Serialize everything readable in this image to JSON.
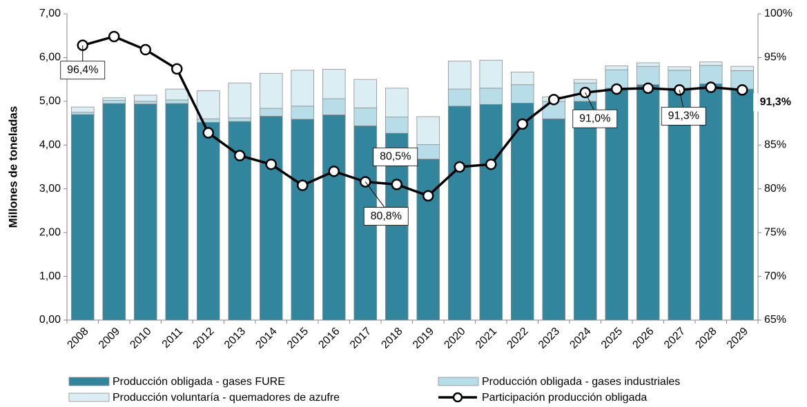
{
  "chart_data": {
    "type": "stacked_bar_line",
    "y_axis_label": "Millones de toneladas",
    "categories": [
      "2008",
      "2009",
      "2010",
      "2011",
      "2012",
      "2013",
      "2014",
      "2015",
      "2016",
      "2017",
      "2018",
      "2019",
      "2020",
      "2021",
      "2022",
      "2023",
      "2024",
      "2025",
      "2026",
      "2027",
      "2028",
      "2029"
    ],
    "series": [
      {
        "name": "Producción obligada - gases FURE",
        "color": "#31859c",
        "values": [
          4.7,
          4.95,
          4.94,
          4.95,
          4.52,
          4.54,
          4.66,
          4.59,
          4.69,
          4.44,
          4.27,
          3.68,
          4.89,
          4.93,
          4.96,
          4.6,
          5.0,
          5.3,
          5.38,
          5.3,
          5.4,
          5.28
        ]
      },
      {
        "name": "Producción obligada - gases industriales",
        "color": "#b7dee8",
        "values": [
          0.05,
          0.07,
          0.06,
          0.08,
          0.08,
          0.08,
          0.18,
          0.3,
          0.37,
          0.41,
          0.37,
          0.33,
          0.39,
          0.37,
          0.42,
          0.4,
          0.42,
          0.42,
          0.42,
          0.41,
          0.42,
          0.42
        ]
      },
      {
        "name": "Producción voluntaría - quemadores de azufre",
        "color": "#dbeef4",
        "values": [
          0.12,
          0.06,
          0.14,
          0.25,
          0.64,
          0.8,
          0.8,
          0.82,
          0.67,
          0.65,
          0.66,
          0.64,
          0.64,
          0.64,
          0.29,
          0.1,
          0.08,
          0.09,
          0.08,
          0.08,
          0.08,
          0.1
        ]
      },
      {
        "name": "Participación producción obligada",
        "color": "#000000",
        "axis": "y2",
        "values": [
          96.4,
          97.4,
          95.9,
          93.7,
          86.4,
          83.8,
          82.8,
          80.4,
          82.0,
          80.8,
          80.5,
          79.2,
          82.5,
          82.8,
          87.4,
          90.2,
          91.0,
          91.4,
          91.5,
          91.3,
          91.6,
          91.3
        ],
        "value_labels": [
          "96,4%",
          null,
          null,
          null,
          null,
          null,
          null,
          null,
          null,
          "80,8%",
          "80,5%",
          null,
          null,
          null,
          null,
          null,
          "91,0%",
          null,
          null,
          "91,3%",
          null,
          "91,3%"
        ]
      }
    ],
    "ylim": [
      0,
      7
    ],
    "yticks": [
      {
        "value": 0,
        "label": "0,00"
      },
      {
        "value": 1,
        "label": "1,00"
      },
      {
        "value": 2,
        "label": "2,00"
      },
      {
        "value": 3,
        "label": "3,00"
      },
      {
        "value": 4,
        "label": "4,00"
      },
      {
        "value": 5,
        "label": "5,00"
      },
      {
        "value": 6,
        "label": "6,00"
      },
      {
        "value": 7,
        "label": "7,00"
      }
    ],
    "y2lim": [
      65,
      100
    ],
    "y2ticks": [
      {
        "value": 65,
        "label": "65%"
      },
      {
        "value": 70,
        "label": "70%"
      },
      {
        "value": 75,
        "label": "75%"
      },
      {
        "value": 80,
        "label": "80%"
      },
      {
        "value": 85,
        "label": "85%"
      },
      {
        "value": 90,
        "label": "90%"
      },
      {
        "value": 95,
        "label": "95%"
      },
      {
        "value": 100,
        "label": "100%"
      }
    ]
  }
}
